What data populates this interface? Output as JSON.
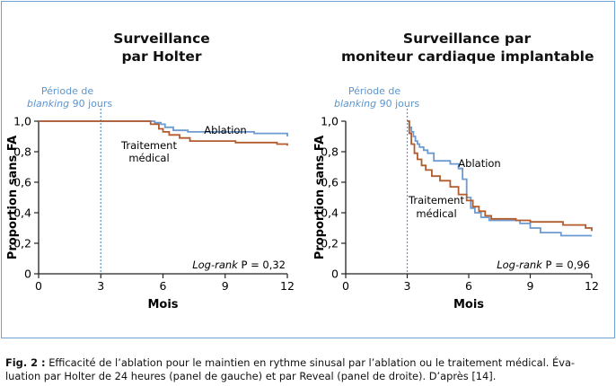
{
  "panels": [
    {
      "title_line1": "Surveillance",
      "title_line2": "par Holter",
      "blanking_line1": "Période de",
      "blanking_italic": "blanking",
      "blanking_rest": " 90 jours",
      "ylabel": "Proportion sans FA",
      "xlabel": "Mois",
      "logrank_italic": "Log-rank",
      "logrank_rest": " P = 0,32",
      "label_ablation": "Ablation",
      "label_medical_1": "Traitement",
      "label_medical_2": "médical"
    },
    {
      "title_line1": "Surveillance par",
      "title_line2": "moniteur cardiaque implantable",
      "blanking_line1": "Période de",
      "blanking_italic": "blanking",
      "blanking_rest": " 90 jours",
      "ylabel": "Proportion sans FA",
      "xlabel": "Mois",
      "logrank_italic": "Log-rank",
      "logrank_rest": " P = 0,96",
      "label_ablation": "Ablation",
      "label_medical_1": "Traitement",
      "label_medical_2": "médical"
    }
  ],
  "caption": {
    "prefix": "Fig. 2 :",
    "line1": " Efficacité de l’ablation pour le maintien en rythme sinusal par l’ablation ou le traitement médical. Éva-",
    "line2": "luation par Holter de 24 heures (panel de gauche) et par Reveal (panel de droite). D’après [14]."
  },
  "colors": {
    "ablation": "#6c9bd1",
    "medical": "#b25b2c",
    "frame": "#6fa1d3",
    "blanking_line": "#5b95cf"
  },
  "chart_data": [
    {
      "type": "line",
      "title": "Surveillance par Holter",
      "xlabel": "Mois",
      "ylabel": "Proportion sans FA",
      "xlim": [
        0,
        12
      ],
      "ylim": [
        0,
        1.0
      ],
      "xticks": [
        "0",
        "3",
        "6",
        "9",
        "12"
      ],
      "yticks": [
        "0",
        "0,2",
        "0,4",
        "0,6",
        "0,8",
        "1,0"
      ],
      "blanking_x": 3,
      "annotation": "Log-rank P = 0,32",
      "series": [
        {
          "name": "Ablation",
          "step": true,
          "x": [
            0,
            5.6,
            5.9,
            6.1,
            6.5,
            7.2,
            10.4,
            12
          ],
          "y": [
            1.0,
            0.99,
            0.98,
            0.96,
            0.94,
            0.93,
            0.92,
            0.9
          ]
        },
        {
          "name": "Traitement médical",
          "step": true,
          "x": [
            0,
            5.4,
            5.8,
            6.0,
            6.3,
            6.8,
            7.3,
            9.5,
            11.5,
            12
          ],
          "y": [
            1.0,
            0.98,
            0.95,
            0.93,
            0.91,
            0.89,
            0.87,
            0.86,
            0.85,
            0.84
          ]
        }
      ]
    },
    {
      "type": "line",
      "title": "Surveillance par moniteur cardiaque implantable",
      "xlabel": "Mois",
      "ylabel": "Proportion sans FA",
      "xlim": [
        0,
        12
      ],
      "ylim": [
        0,
        1.0
      ],
      "xticks": [
        "0",
        "3",
        "6",
        "9",
        "12"
      ],
      "yticks": [
        "0",
        "0,2",
        "0,4",
        "0,6",
        "0,8",
        "1,0"
      ],
      "blanking_x": 3,
      "annotation": "Log-rank P = 0,96",
      "series": [
        {
          "name": "Ablation",
          "step": true,
          "x": [
            3.0,
            3.1,
            3.2,
            3.3,
            3.4,
            3.5,
            3.6,
            3.8,
            4.0,
            4.3,
            5.1,
            5.5,
            5.7,
            5.9,
            6.1,
            6.3,
            6.6,
            7.0,
            8.0,
            8.5,
            9.0,
            9.5,
            10.5,
            12
          ],
          "y": [
            1.0,
            0.96,
            0.93,
            0.9,
            0.87,
            0.85,
            0.83,
            0.81,
            0.79,
            0.74,
            0.72,
            0.69,
            0.62,
            0.5,
            0.43,
            0.4,
            0.37,
            0.35,
            0.35,
            0.33,
            0.3,
            0.27,
            0.25,
            0.25
          ]
        },
        {
          "name": "Traitement médical",
          "step": true,
          "x": [
            3.0,
            3.1,
            3.2,
            3.35,
            3.5,
            3.7,
            3.9,
            4.2,
            4.6,
            5.1,
            5.5,
            5.9,
            6.2,
            6.5,
            6.8,
            7.1,
            7.5,
            8.3,
            9.0,
            10.6,
            11.7,
            12
          ],
          "y": [
            1.0,
            0.92,
            0.85,
            0.79,
            0.75,
            0.71,
            0.68,
            0.64,
            0.61,
            0.57,
            0.52,
            0.48,
            0.44,
            0.41,
            0.38,
            0.36,
            0.36,
            0.35,
            0.34,
            0.32,
            0.3,
            0.28
          ]
        }
      ]
    }
  ]
}
